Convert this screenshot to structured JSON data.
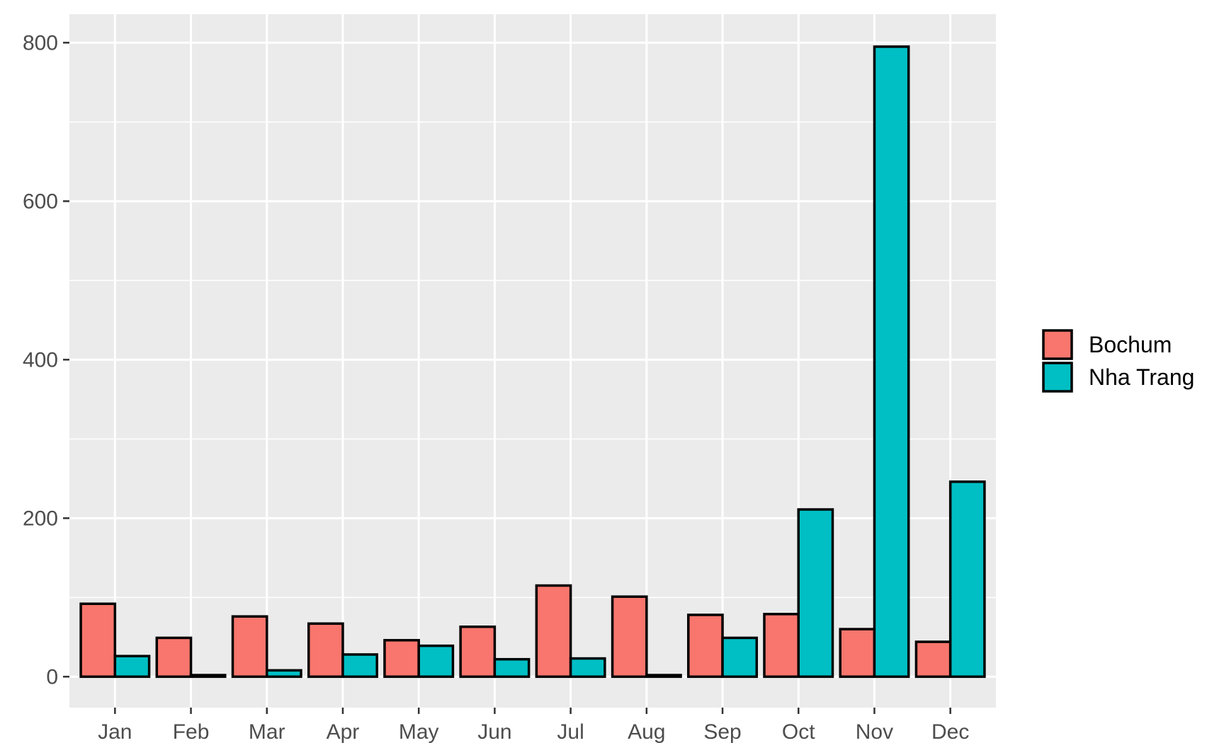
{
  "chart_data": {
    "type": "bar",
    "title": "",
    "xlabel": "",
    "ylabel": "",
    "categories": [
      "Jan",
      "Feb",
      "Mar",
      "Apr",
      "May",
      "Jun",
      "Jul",
      "Aug",
      "Sep",
      "Oct",
      "Nov",
      "Dec"
    ],
    "series": [
      {
        "name": "Bochum",
        "color": "#F8766D",
        "values": [
          92,
          49,
          76,
          67,
          46,
          63,
          115,
          101,
          78,
          79,
          60,
          44
        ]
      },
      {
        "name": "Nha Trang",
        "color": "#00BFC4",
        "values": [
          26,
          2,
          8,
          28,
          39,
          22,
          23,
          2,
          49,
          211,
          795,
          246
        ]
      }
    ],
    "yticks": [
      0,
      200,
      400,
      600,
      800
    ],
    "ylim": [
      -39,
      836
    ],
    "grid": true,
    "legend_position": "right"
  }
}
